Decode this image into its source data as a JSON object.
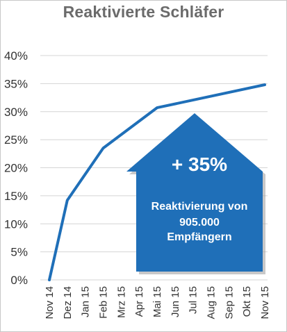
{
  "chart_data": {
    "type": "line",
    "title": "Reaktivierte Schläfer",
    "categories": [
      "Nov 14",
      "Dez 14",
      "Jan 15",
      "Feb 15",
      "Mrz 15",
      "Apr 15",
      "Mai 15",
      "Jun 15",
      "Jul 15",
      "Aug 15",
      "Sep 15",
      "Okt 15",
      "Nov 15"
    ],
    "series": [
      {
        "values": [
          0,
          14.2,
          null,
          23.5,
          null,
          null,
          30.7,
          null,
          null,
          null,
          null,
          null,
          34.8
        ]
      }
    ],
    "ylim": [
      0,
      40
    ],
    "yticks": [
      "0%",
      "5%",
      "10%",
      "15%",
      "20%",
      "25%",
      "30%",
      "35%",
      "40%"
    ],
    "grid": true,
    "line_color": "#1f6fb8",
    "callout": {
      "main": "+ 35%",
      "line1": "Reaktivierung von",
      "line2": "905.000",
      "line3": "Empfängern",
      "color": "#1f6fb8"
    }
  }
}
